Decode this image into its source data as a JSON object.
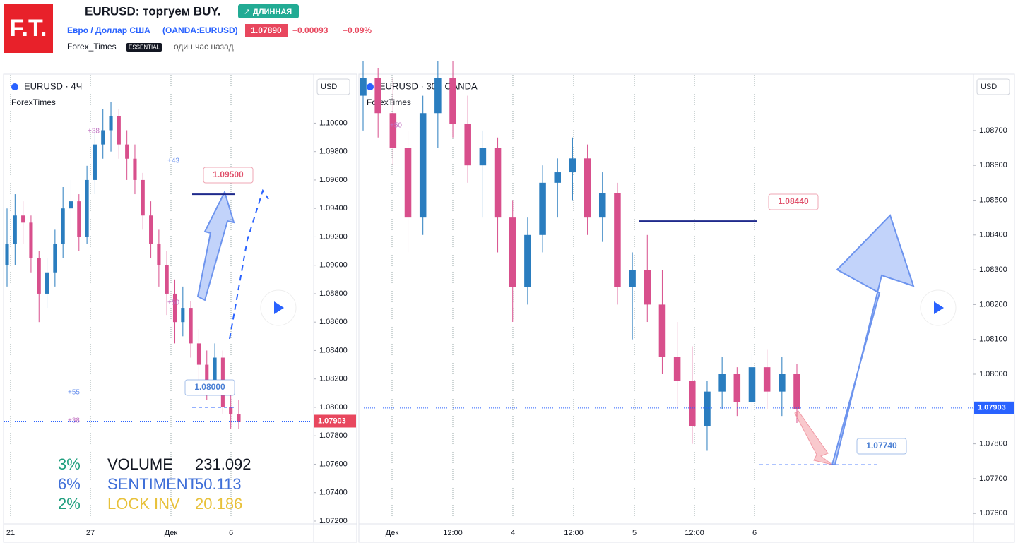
{
  "header": {
    "logo": "F.T.",
    "title": "EURUSD: торгуем BUY.",
    "badge": "ДЛИННАЯ",
    "symbol_name": "Евро / Доллар США",
    "symbol_code": "(OANDA:EURUSD)",
    "price": "1.07890",
    "change": "−0.00093",
    "change_pct": "−0.09%",
    "author": "Forex_Times",
    "plan": "ESSENTIAL",
    "time": "один час назад"
  },
  "charts": [
    {
      "type": "candlestick",
      "title": "EURUSD · 4Ч",
      "indicator": "ForexTimes",
      "currency": "USD",
      "last_price": 1.07903,
      "last_price_label": "1.07903",
      "ylim": [
        1.0718,
        1.1034
      ],
      "yticks": [
        {
          "value": 1.1,
          "label": "1.10000"
        },
        {
          "value": 1.098,
          "label": "1.09800"
        },
        {
          "value": 1.096,
          "label": "1.09600"
        },
        {
          "value": 1.094,
          "label": "1.09400"
        },
        {
          "value": 1.092,
          "label": "1.09200"
        },
        {
          "value": 1.09,
          "label": "1.09000"
        },
        {
          "value": 1.088,
          "label": "1.08800"
        },
        {
          "value": 1.086,
          "label": "1.08600"
        },
        {
          "value": 1.084,
          "label": "1.08400"
        },
        {
          "value": 1.082,
          "label": "1.08200"
        },
        {
          "value": 1.08,
          "label": "1.08000"
        },
        {
          "value": 1.078,
          "label": "1.07800"
        },
        {
          "value": 1.076,
          "label": "1.07600"
        },
        {
          "value": 1.074,
          "label": "1.07400"
        },
        {
          "value": 1.072,
          "label": "1.07200"
        }
      ],
      "categories": [
        "21",
        "27",
        "Дек",
        "6"
      ],
      "candles": [
        [
          1.09,
          1.094,
          1.0885,
          1.0915
        ],
        [
          1.0915,
          1.095,
          1.09,
          1.0935
        ],
        [
          1.0935,
          1.0945,
          1.0915,
          1.093
        ],
        [
          1.093,
          1.0935,
          1.0895,
          1.0905
        ],
        [
          1.0905,
          1.091,
          1.086,
          1.088
        ],
        [
          1.088,
          1.0905,
          1.087,
          1.0895
        ],
        [
          1.0895,
          1.0925,
          1.0885,
          1.0915
        ],
        [
          1.0915,
          1.0955,
          1.0905,
          1.094
        ],
        [
          1.094,
          1.096,
          1.0925,
          1.0945
        ],
        [
          1.0945,
          1.095,
          1.091,
          1.092
        ],
        [
          1.092,
          1.097,
          1.0915,
          1.096
        ],
        [
          1.096,
          1.0995,
          1.095,
          1.0985
        ],
        [
          1.0985,
          1.101,
          1.0975,
          1.0995
        ],
        [
          1.0995,
          1.1015,
          1.098,
          1.1005
        ],
        [
          1.1005,
          1.101,
          1.0975,
          1.0985
        ],
        [
          1.0985,
          1.0995,
          1.096,
          1.0975
        ],
        [
          1.0975,
          1.0985,
          1.095,
          1.096
        ],
        [
          1.096,
          1.0965,
          1.0925,
          1.0935
        ],
        [
          1.0935,
          1.0945,
          1.0905,
          1.0915
        ],
        [
          1.0915,
          1.0925,
          1.0885,
          1.09
        ],
        [
          1.09,
          1.091,
          1.0865,
          1.088
        ],
        [
          1.088,
          1.089,
          1.0845,
          1.086
        ],
        [
          1.086,
          1.0885,
          1.085,
          1.087
        ],
        [
          1.087,
          1.0875,
          1.0835,
          1.0845
        ],
        [
          1.0845,
          1.0855,
          1.0815,
          1.083
        ],
        [
          1.083,
          1.084,
          1.0805,
          1.0815
        ],
        [
          1.0815,
          1.0845,
          1.081,
          1.0835
        ],
        [
          1.0835,
          1.084,
          1.0795,
          1.08
        ],
        [
          1.08,
          1.081,
          1.0785,
          1.0795
        ],
        [
          1.0795,
          1.0805,
          1.0785,
          1.079
        ]
      ],
      "levels": [
        {
          "value": 1.095,
          "label": "1.09500",
          "color": "#e0506a"
        },
        {
          "value": 1.08,
          "label": "1.08000",
          "color": "#4a7fd4"
        }
      ],
      "marks": [
        "+38",
        "+43",
        "+50",
        "+55",
        "+38"
      ],
      "table": [
        [
          "3%",
          "VOLUME",
          "231.092"
        ],
        [
          "6%",
          "SENTIMENT",
          "50.113"
        ],
        [
          "2%",
          "LOCK INV",
          "20.186"
        ]
      ]
    },
    {
      "type": "candlestick",
      "title": "EURUSD · 30 · OANDA",
      "indicator": "ForexTimes",
      "currency": "USD",
      "last_price": 1.07903,
      "last_price_label": "1.07903",
      "ylim": [
        1.0757,
        1.0886
      ],
      "yticks": [
        {
          "value": 1.087,
          "label": "1.08700"
        },
        {
          "value": 1.086,
          "label": "1.08600"
        },
        {
          "value": 1.085,
          "label": "1.08500"
        },
        {
          "value": 1.084,
          "label": "1.08400"
        },
        {
          "value": 1.083,
          "label": "1.08300"
        },
        {
          "value": 1.082,
          "label": "1.08200"
        },
        {
          "value": 1.081,
          "label": "1.08100"
        },
        {
          "value": 1.08,
          "label": "1.08000"
        },
        {
          "value": 1.079,
          "label": "1.07900"
        },
        {
          "value": 1.078,
          "label": "1.07800"
        },
        {
          "value": 1.077,
          "label": "1.07700"
        },
        {
          "value": 1.076,
          "label": "1.07600"
        }
      ],
      "categories": [
        "Дек",
        "12:00",
        "4",
        "12:00",
        "5",
        "12:00",
        "6"
      ],
      "candles": [
        [
          1.088,
          1.089,
          1.087,
          1.0885
        ],
        [
          1.0885,
          1.0888,
          1.0868,
          1.0875
        ],
        [
          1.0875,
          1.0885,
          1.086,
          1.0865
        ],
        [
          1.0865,
          1.087,
          1.0835,
          1.0845
        ],
        [
          1.0845,
          1.088,
          1.084,
          1.0875
        ],
        [
          1.0875,
          1.089,
          1.0865,
          1.0885
        ],
        [
          1.0885,
          1.089,
          1.0868,
          1.0872
        ],
        [
          1.0872,
          1.088,
          1.0855,
          1.086
        ],
        [
          1.086,
          1.087,
          1.0845,
          1.0865
        ],
        [
          1.0865,
          1.0868,
          1.0835,
          1.0845
        ],
        [
          1.0845,
          1.085,
          1.0815,
          1.0825
        ],
        [
          1.0825,
          1.0845,
          1.082,
          1.084
        ],
        [
          1.084,
          1.086,
          1.0835,
          1.0855
        ],
        [
          1.0855,
          1.0862,
          1.0845,
          1.0858
        ],
        [
          1.0858,
          1.0868,
          1.085,
          1.0862
        ],
        [
          1.0862,
          1.0866,
          1.084,
          1.0845
        ],
        [
          1.0845,
          1.0858,
          1.0838,
          1.0852
        ],
        [
          1.0852,
          1.0855,
          1.082,
          1.0825
        ],
        [
          1.0825,
          1.0835,
          1.081,
          1.083
        ],
        [
          1.083,
          1.084,
          1.0815,
          1.082
        ],
        [
          1.082,
          1.083,
          1.08,
          1.0805
        ],
        [
          1.0805,
          1.0815,
          1.079,
          1.0798
        ],
        [
          1.0798,
          1.0808,
          1.078,
          1.0785
        ],
        [
          1.0785,
          1.0798,
          1.0778,
          1.0795
        ],
        [
          1.0795,
          1.0805,
          1.079,
          1.08
        ],
        [
          1.08,
          1.0802,
          1.0788,
          1.0792
        ],
        [
          1.0792,
          1.0806,
          1.0789,
          1.0802
        ],
        [
          1.0802,
          1.0807,
          1.079,
          1.0795
        ],
        [
          1.0795,
          1.0805,
          1.0788,
          1.08
        ],
        [
          1.08,
          1.0803,
          1.0786,
          1.079
        ]
      ],
      "levels": [
        {
          "value": 1.0844,
          "label": "1.08440",
          "color": "#e0506a"
        },
        {
          "value": 1.0774,
          "label": "1.07740",
          "color": "#4a7fd4"
        }
      ],
      "marks": [
        "+50"
      ]
    }
  ]
}
